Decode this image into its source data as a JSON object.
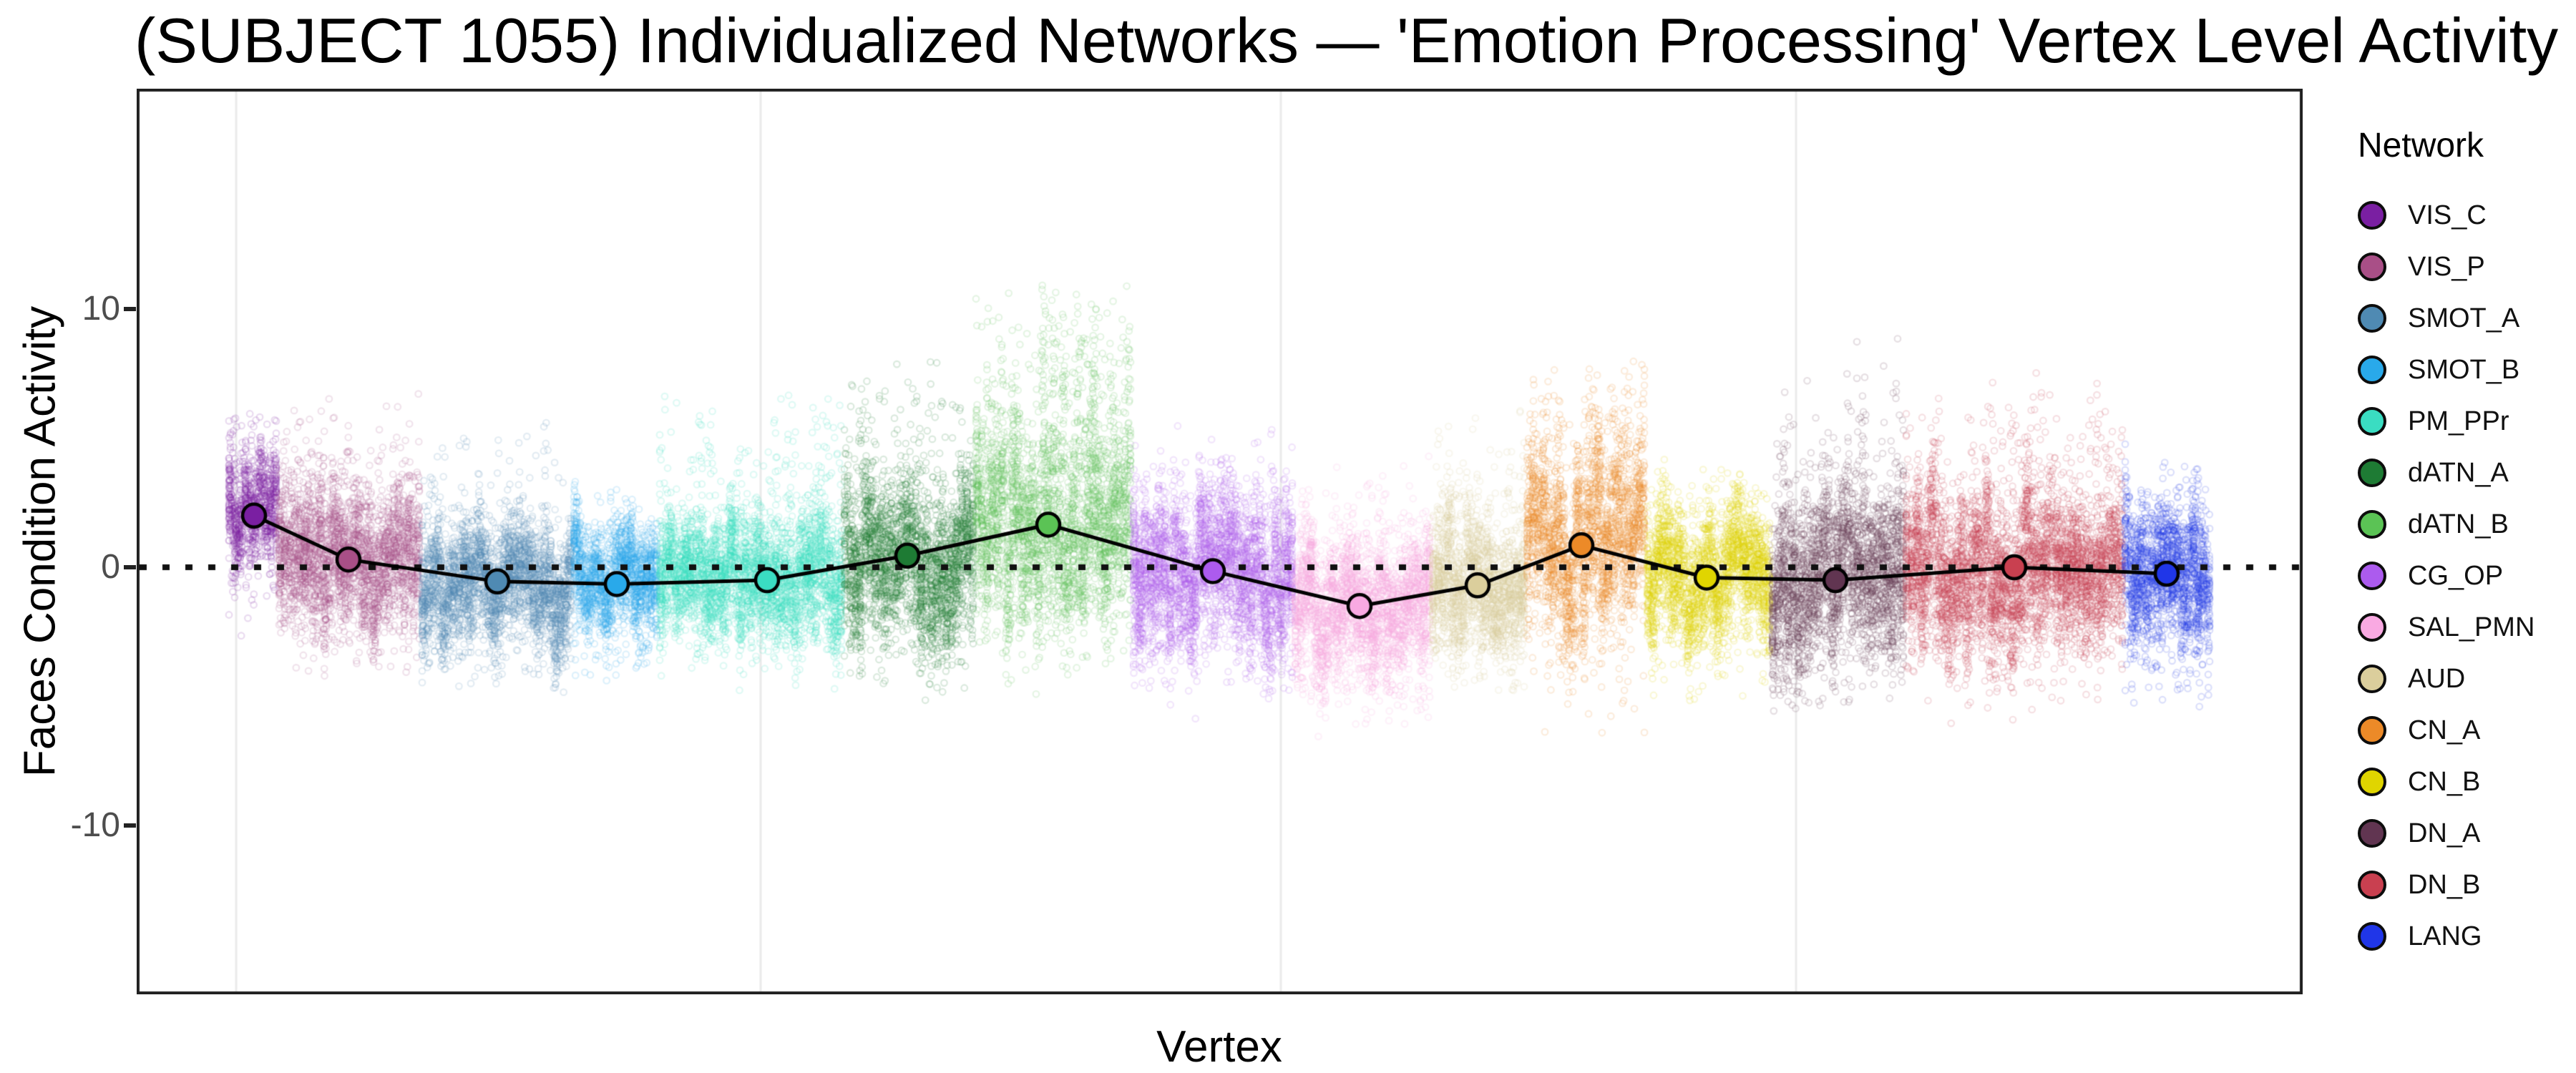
{
  "title": "(SUBJECT 1055) Individualized Networks — 'Emotion Processing' Vertex Level Activity",
  "axes": {
    "x_label": "Vertex",
    "y_label": "Faces Condition Activity"
  },
  "legend": {
    "title": "Network"
  },
  "chart_data": {
    "type": "scatter",
    "title": "(SUBJECT 1055) Individualized Networks — 'Emotion Processing' Vertex Level Activity",
    "xlabel": "Vertex",
    "ylabel": "Faces Condition Activity",
    "ylim": [
      -16.5,
      18.5
    ],
    "y_ticks": [
      10,
      0,
      -10
    ],
    "x_tick_labels": [],
    "grid": "faint vertical major gridlines only",
    "reference_line": {
      "y": 0,
      "style": "dotted",
      "color": "#111111"
    },
    "legend_position": "right",
    "summary_line": {
      "color": "#000000",
      "marker": "circle filled with network color, black outline"
    },
    "networks": [
      {
        "name": "VIS_C",
        "color": "#7A1FA2",
        "x0": 127,
        "x1": 197,
        "mean_x": 164,
        "mean_value": 2.0,
        "dist": {
          "center": 2.0,
          "sd": 1.2,
          "up_max": 6.2,
          "down_min": -2.8,
          "p_up": 0.03,
          "p_down": 0.03
        }
      },
      {
        "name": "VIS_P",
        "color": "#A94F87",
        "x0": 197,
        "x1": 397,
        "mean_x": 296,
        "mean_value": 0.3,
        "dist": {
          "center": 0.3,
          "sd": 1.5,
          "up_max": 7.0,
          "down_min": -4.5,
          "p_up": 0.035,
          "p_down": 0.022
        }
      },
      {
        "name": "SMOT_A",
        "color": "#4F8AB3",
        "x0": 397,
        "x1": 609,
        "mean_x": 504,
        "mean_value": -0.55,
        "dist": {
          "center": -0.55,
          "sd": 1.3,
          "up_max": 6.0,
          "down_min": -4.8,
          "p_up": 0.03,
          "p_down": 0.03
        }
      },
      {
        "name": "SMOT_B",
        "color": "#29A9EA",
        "x0": 609,
        "x1": 729,
        "mean_x": 671,
        "mean_value": -0.65,
        "dist": {
          "center": -0.65,
          "sd": 1.2,
          "up_max": 4.5,
          "down_min": -4.5,
          "p_up": 0.022,
          "p_down": 0.03
        }
      },
      {
        "name": "PM_PPr",
        "color": "#3ADDC2",
        "x0": 729,
        "x1": 987,
        "mean_x": 881,
        "mean_value": -0.5,
        "dist": {
          "center": -0.5,
          "sd": 1.3,
          "up_max": 7.3,
          "down_min": -4.2,
          "p_up": 0.04,
          "p_down": 0.022,
          "spike_from": 0.6,
          "spike_boost": 1.8
        }
      },
      {
        "name": "dATN_A",
        "color": "#1E7B34",
        "x0": 987,
        "x1": 1171,
        "mean_x": 1077,
        "mean_value": 0.45,
        "dist": {
          "center": 0.35,
          "sd": 1.7,
          "up_max": 8.2,
          "down_min": -5.2,
          "p_up": 0.05,
          "p_down": 0.03
        }
      },
      {
        "name": "dATN_B",
        "color": "#5BC355",
        "x0": 1171,
        "x1": 1391,
        "mean_x": 1274,
        "mean_value": 1.65,
        "dist": {
          "center": 1.5,
          "sd": 2.0,
          "up_max": 11.2,
          "down_min": -3.8,
          "p_up": 0.07,
          "p_down": 0.02,
          "spike_from": 0.42,
          "spike_boost": 3.0
        }
      },
      {
        "name": "CG_OP",
        "color": "#AC5BEE",
        "x0": 1391,
        "x1": 1617,
        "mean_x": 1504,
        "mean_value": -0.15,
        "dist": {
          "center": -0.15,
          "sd": 1.6,
          "up_max": 5.8,
          "down_min": -5.5,
          "p_up": 0.03,
          "p_down": 0.03
        }
      },
      {
        "name": "SAL_PMN",
        "color": "#F9A9E2",
        "x0": 1617,
        "x1": 1809,
        "mean_x": 1709,
        "mean_value": -1.5,
        "dist": {
          "center": -1.5,
          "sd": 1.5,
          "up_max": 4.2,
          "down_min": -6.6,
          "p_up": 0.022,
          "p_down": 0.04
        }
      },
      {
        "name": "AUD",
        "color": "#DBCE9C",
        "x0": 1809,
        "x1": 1941,
        "mean_x": 1874,
        "mean_value": -0.7,
        "dist": {
          "center": -0.8,
          "sd": 1.4,
          "up_max": 6.8,
          "down_min": -5.0,
          "p_up": 0.04,
          "p_down": 0.03
        }
      },
      {
        "name": "CN_A",
        "color": "#EC8A28",
        "x0": 1941,
        "x1": 2109,
        "mean_x": 2019,
        "mean_value": 0.85,
        "dist": {
          "center": 0.8,
          "sd": 1.7,
          "up_max": 8.2,
          "down_min": -7.0,
          "p_up": 0.06,
          "p_down": 0.025,
          "spike_from": 0.5,
          "spike_boost": 2.2
        }
      },
      {
        "name": "CN_B",
        "color": "#E0D500",
        "x0": 2109,
        "x1": 2284,
        "mean_x": 2194,
        "mean_value": -0.4,
        "dist": {
          "center": -0.45,
          "sd": 1.4,
          "up_max": 4.6,
          "down_min": -5.2,
          "p_up": 0.022,
          "p_down": 0.03
        }
      },
      {
        "name": "DN_A",
        "color": "#613551",
        "x0": 2284,
        "x1": 2471,
        "mean_x": 2374,
        "mean_value": -0.5,
        "dist": {
          "center": -0.5,
          "sd": 1.8,
          "up_max": 9.0,
          "down_min": -5.8,
          "p_up": 0.05,
          "p_down": 0.03,
          "spike_from": 0.55,
          "spike_boost": 1.8
        }
      },
      {
        "name": "DN_B",
        "color": "#C94050",
        "x0": 2471,
        "x1": 2777,
        "mean_x": 2624,
        "mean_value": 0.0,
        "dist": {
          "center": 0.0,
          "sd": 1.7,
          "up_max": 8.0,
          "down_min": -5.6,
          "p_up": 0.04,
          "p_down": 0.03
        }
      },
      {
        "name": "LANG",
        "color": "#2036E8",
        "x0": 2777,
        "x1": 2899,
        "mean_x": 2837,
        "mean_value": -0.25,
        "dist": {
          "center": -0.3,
          "sd": 1.5,
          "up_max": 4.4,
          "down_min": -6.2,
          "p_up": 0.022,
          "p_down": 0.04
        }
      }
    ]
  }
}
